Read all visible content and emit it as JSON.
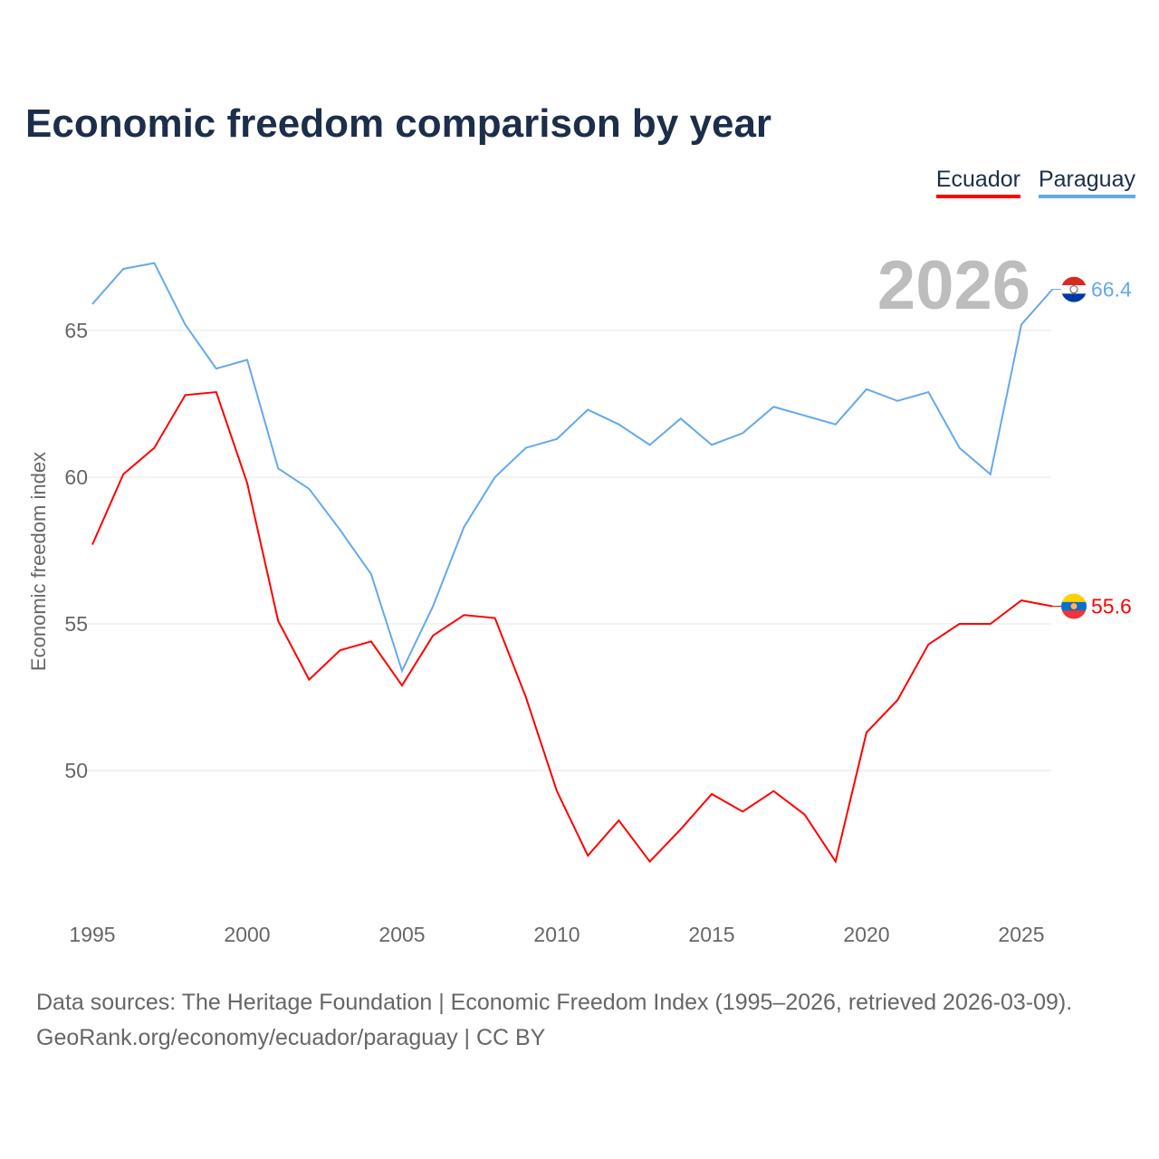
{
  "title": "Economic freedom comparison by year",
  "legend": [
    "Ecuador",
    "Paraguay"
  ],
  "year_label": "2026",
  "footer": {
    "line1": "Data sources: The Heritage Foundation | Economic Freedom Index (1995–2026, retrieved 2026-03-09).",
    "line2": "GeoRank.org/economy/ecuador/paraguay | CC BY"
  },
  "chart_data": {
    "type": "line",
    "title": "Economic freedom comparison by year",
    "xlabel": "",
    "ylabel": "Economic freedom index",
    "x": [
      1995,
      1996,
      1997,
      1998,
      1999,
      2000,
      2001,
      2002,
      2003,
      2004,
      2005,
      2006,
      2007,
      2008,
      2009,
      2010,
      2011,
      2012,
      2013,
      2014,
      2015,
      2016,
      2017,
      2018,
      2019,
      2020,
      2021,
      2022,
      2023,
      2024,
      2025,
      2026
    ],
    "xticks": [
      1995,
      2000,
      2005,
      2010,
      2015,
      2020,
      2025
    ],
    "yticks": [
      50,
      55,
      60,
      65
    ],
    "ylim": [
      45.5,
      68
    ],
    "grid": true,
    "legend_position": "top-right",
    "series": [
      {
        "name": "Ecuador",
        "color": "#ff0000",
        "end_label": "55.6",
        "values": [
          57.7,
          60.1,
          61.0,
          62.8,
          62.9,
          59.8,
          55.1,
          53.1,
          54.1,
          54.4,
          52.9,
          54.6,
          55.3,
          55.2,
          52.5,
          49.3,
          47.1,
          48.3,
          46.9,
          48.0,
          49.2,
          48.6,
          49.3,
          48.5,
          46.9,
          51.3,
          52.4,
          54.3,
          55.0,
          55.0,
          55.8,
          55.6
        ]
      },
      {
        "name": "Paraguay",
        "color": "#63a9ec",
        "end_label": "66.4",
        "values": [
          65.9,
          67.1,
          67.3,
          65.2,
          63.7,
          64.0,
          60.3,
          59.6,
          58.2,
          56.7,
          53.4,
          55.6,
          58.3,
          60.0,
          61.0,
          61.3,
          62.3,
          61.8,
          61.1,
          62.0,
          61.1,
          61.5,
          62.4,
          62.1,
          61.8,
          63.0,
          62.6,
          62.9,
          61.0,
          60.1,
          65.2,
          66.4
        ]
      }
    ]
  }
}
